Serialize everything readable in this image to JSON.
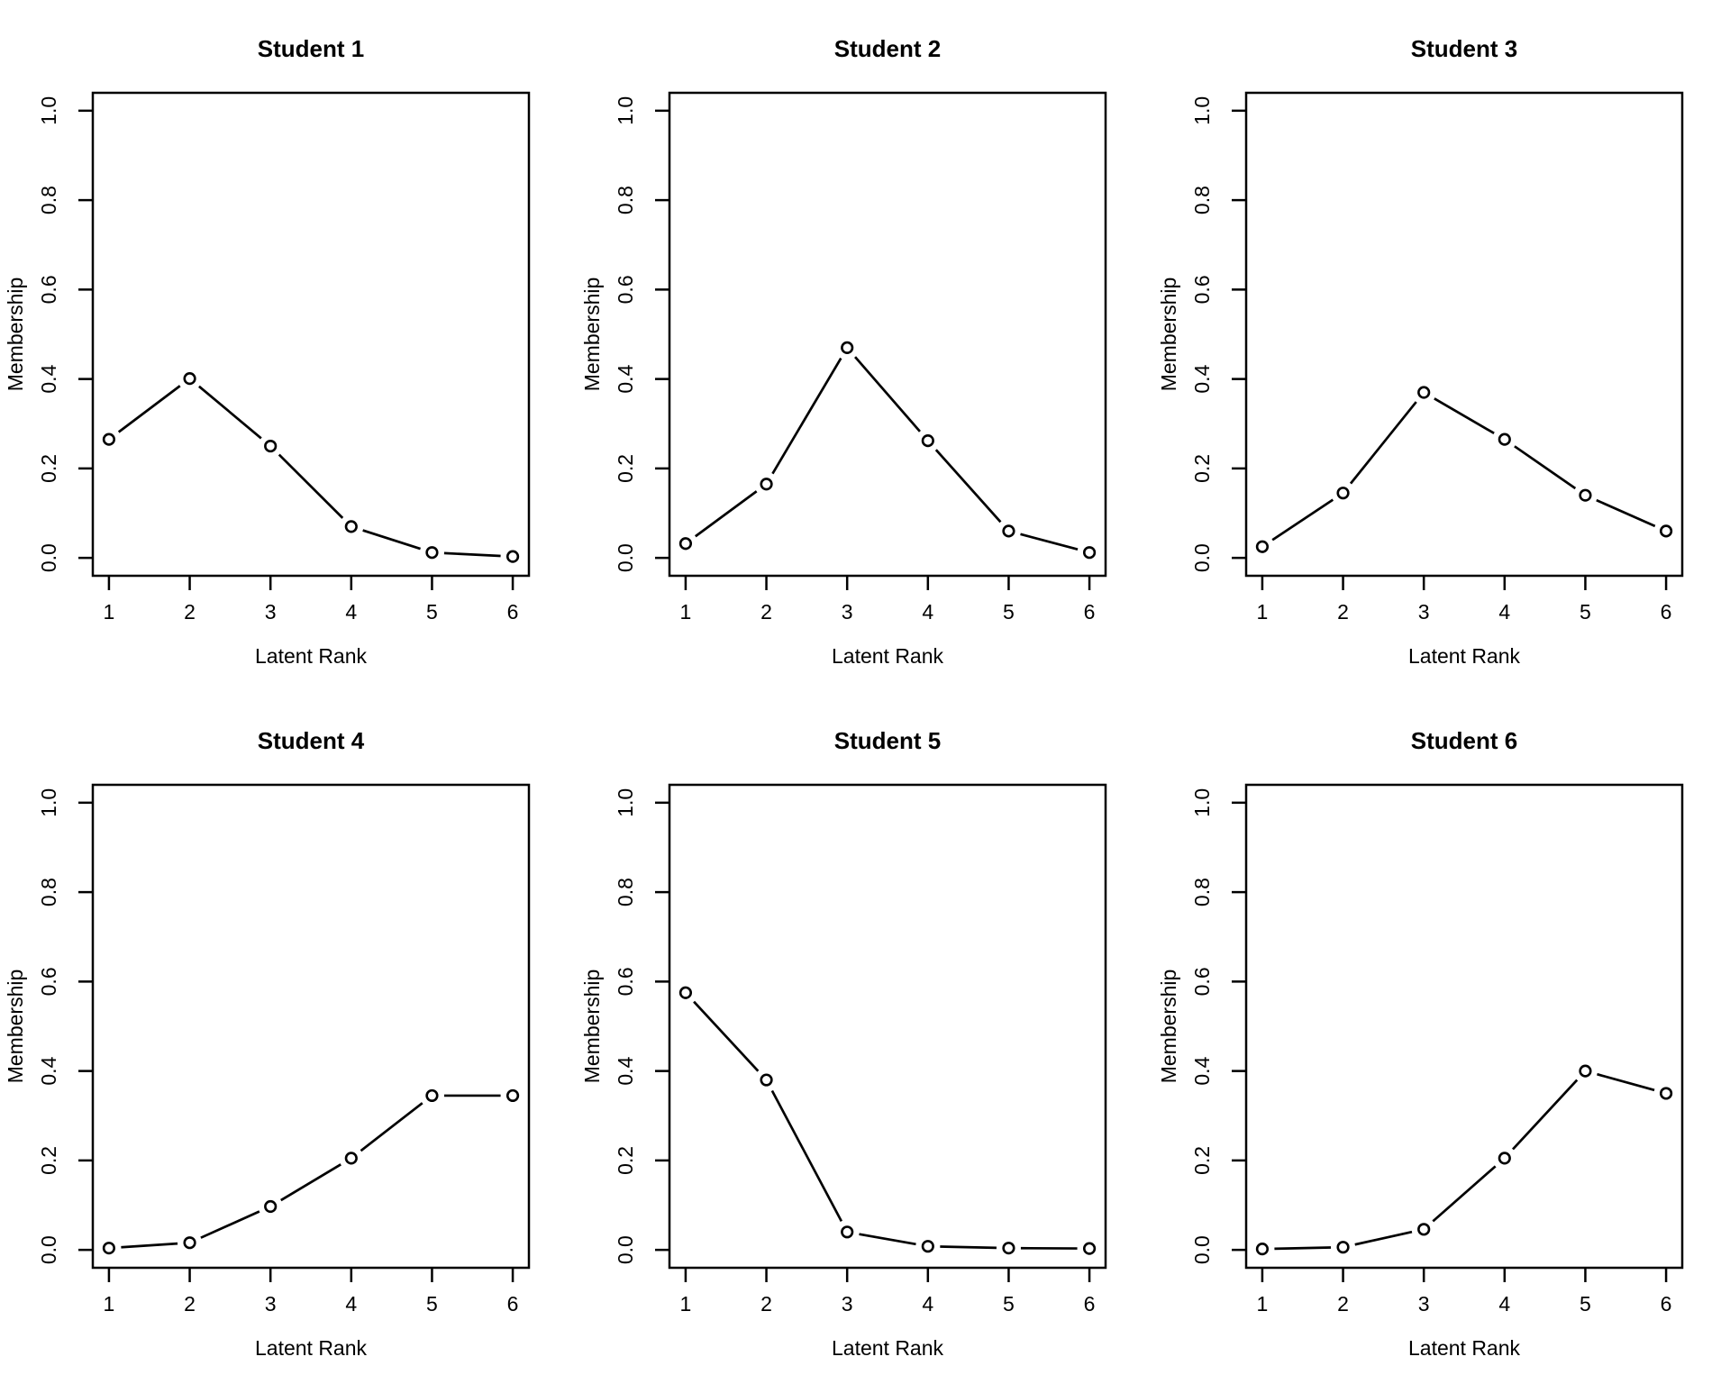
{
  "page": {
    "background": "#ffffff",
    "foreground": "#000000"
  },
  "chart_data": [
    {
      "type": "line",
      "title": "Student 1",
      "xlabel": "Latent Rank",
      "ylabel": "Membership",
      "x": [
        1,
        2,
        3,
        4,
        5,
        6
      ],
      "values": [
        0.265,
        0.401,
        0.25,
        0.07,
        0.012,
        0.003
      ],
      "xlim": [
        1,
        6
      ],
      "ylim": [
        0,
        1
      ],
      "xticks": [
        1,
        2,
        3,
        4,
        5,
        6
      ],
      "xtick_labels": [
        "1",
        "2",
        "3",
        "4",
        "5",
        "6"
      ],
      "yticks": [
        0,
        0.2,
        0.4,
        0.6,
        0.8,
        1
      ],
      "ytick_labels": [
        "0.0",
        "0.2",
        "0.4",
        "0.6",
        "0.8",
        "1.0"
      ],
      "grid": false,
      "legend": "none",
      "marker": "open-circle",
      "color": "#000000"
    },
    {
      "type": "line",
      "title": "Student 2",
      "xlabel": "Latent Rank",
      "ylabel": "Membership",
      "x": [
        1,
        2,
        3,
        4,
        5,
        6
      ],
      "values": [
        0.032,
        0.165,
        0.47,
        0.262,
        0.06,
        0.012
      ],
      "xlim": [
        1,
        6
      ],
      "ylim": [
        0,
        1
      ],
      "xticks": [
        1,
        2,
        3,
        4,
        5,
        6
      ],
      "xtick_labels": [
        "1",
        "2",
        "3",
        "4",
        "5",
        "6"
      ],
      "yticks": [
        0,
        0.2,
        0.4,
        0.6,
        0.8,
        1
      ],
      "ytick_labels": [
        "0.0",
        "0.2",
        "0.4",
        "0.6",
        "0.8",
        "1.0"
      ],
      "grid": false,
      "legend": "none",
      "marker": "open-circle",
      "color": "#000000"
    },
    {
      "type": "line",
      "title": "Student 3",
      "xlabel": "Latent Rank",
      "ylabel": "Membership",
      "x": [
        1,
        2,
        3,
        4,
        5,
        6
      ],
      "values": [
        0.025,
        0.145,
        0.37,
        0.265,
        0.14,
        0.06
      ],
      "xlim": [
        1,
        6
      ],
      "ylim": [
        0,
        1
      ],
      "xticks": [
        1,
        2,
        3,
        4,
        5,
        6
      ],
      "xtick_labels": [
        "1",
        "2",
        "3",
        "4",
        "5",
        "6"
      ],
      "yticks": [
        0,
        0.2,
        0.4,
        0.6,
        0.8,
        1
      ],
      "ytick_labels": [
        "0.0",
        "0.2",
        "0.4",
        "0.6",
        "0.8",
        "1.0"
      ],
      "grid": false,
      "legend": "none",
      "marker": "open-circle",
      "color": "#000000"
    },
    {
      "type": "line",
      "title": "Student 4",
      "xlabel": "Latent Rank",
      "ylabel": "Membership",
      "x": [
        1,
        2,
        3,
        4,
        5,
        6
      ],
      "values": [
        0.004,
        0.016,
        0.097,
        0.205,
        0.345,
        0.345
      ],
      "xlim": [
        1,
        6
      ],
      "ylim": [
        0,
        1
      ],
      "xticks": [
        1,
        2,
        3,
        4,
        5,
        6
      ],
      "xtick_labels": [
        "1",
        "2",
        "3",
        "4",
        "5",
        "6"
      ],
      "yticks": [
        0,
        0.2,
        0.4,
        0.6,
        0.8,
        1
      ],
      "ytick_labels": [
        "0.0",
        "0.2",
        "0.4",
        "0.6",
        "0.8",
        "1.0"
      ],
      "grid": false,
      "legend": "none",
      "marker": "open-circle",
      "color": "#000000"
    },
    {
      "type": "line",
      "title": "Student 5",
      "xlabel": "Latent Rank",
      "ylabel": "Membership",
      "x": [
        1,
        2,
        3,
        4,
        5,
        6
      ],
      "values": [
        0.575,
        0.38,
        0.04,
        0.008,
        0.004,
        0.003
      ],
      "xlim": [
        1,
        6
      ],
      "ylim": [
        0,
        1
      ],
      "xticks": [
        1,
        2,
        3,
        4,
        5,
        6
      ],
      "xtick_labels": [
        "1",
        "2",
        "3",
        "4",
        "5",
        "6"
      ],
      "yticks": [
        0,
        0.2,
        0.4,
        0.6,
        0.8,
        1
      ],
      "ytick_labels": [
        "0.0",
        "0.2",
        "0.4",
        "0.6",
        "0.8",
        "1.0"
      ],
      "grid": false,
      "legend": "none",
      "marker": "open-circle",
      "color": "#000000"
    },
    {
      "type": "line",
      "title": "Student 6",
      "xlabel": "Latent Rank",
      "ylabel": "Membership",
      "x": [
        1,
        2,
        3,
        4,
        5,
        6
      ],
      "values": [
        0.002,
        0.006,
        0.046,
        0.205,
        0.4,
        0.35
      ],
      "xlim": [
        1,
        6
      ],
      "ylim": [
        0,
        1
      ],
      "xticks": [
        1,
        2,
        3,
        4,
        5,
        6
      ],
      "xtick_labels": [
        "1",
        "2",
        "3",
        "4",
        "5",
        "6"
      ],
      "yticks": [
        0,
        0.2,
        0.4,
        0.6,
        0.8,
        1
      ],
      "ytick_labels": [
        "0.0",
        "0.2",
        "0.4",
        "0.6",
        "0.8",
        "1.0"
      ],
      "grid": false,
      "legend": "none",
      "marker": "open-circle",
      "color": "#000000"
    }
  ]
}
